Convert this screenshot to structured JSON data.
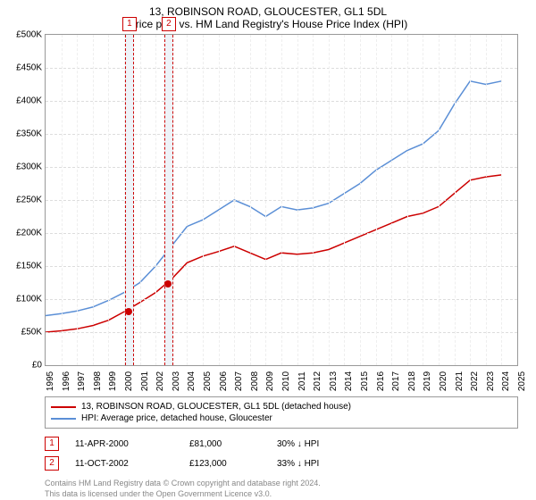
{
  "title": "13, ROBINSON ROAD, GLOUCESTER, GL1 5DL",
  "subtitle": "Price paid vs. HM Land Registry's House Price Index (HPI)",
  "chart": {
    "type": "line",
    "background_color": "#ffffff",
    "grid_color": "#dddddd",
    "axis_color": "#999999",
    "x_years": [
      1995,
      1996,
      1997,
      1998,
      1999,
      2000,
      2001,
      2002,
      2003,
      2004,
      2005,
      2006,
      2007,
      2008,
      2009,
      2010,
      2011,
      2012,
      2013,
      2014,
      2015,
      2016,
      2017,
      2018,
      2019,
      2020,
      2021,
      2022,
      2023,
      2024,
      2025
    ],
    "xlim": [
      1995,
      2025
    ],
    "ylim": [
      0,
      500000
    ],
    "ytick_step": 50000,
    "ytick_prefix": "£",
    "ytick_suffixK": true,
    "label_fontsize": 10,
    "line_width": 1.5,
    "series": [
      {
        "name": "13, ROBINSON ROAD, GLOUCESTER, GL1 5DL (detached house)",
        "color": "#cc0000",
        "points": [
          [
            1995,
            50000
          ],
          [
            1996,
            52000
          ],
          [
            1997,
            55000
          ],
          [
            1998,
            60000
          ],
          [
            1999,
            68000
          ],
          [
            2000,
            81000
          ],
          [
            2001,
            95000
          ],
          [
            2002,
            110000
          ],
          [
            2003,
            130000
          ],
          [
            2004,
            155000
          ],
          [
            2005,
            165000
          ],
          [
            2006,
            172000
          ],
          [
            2007,
            180000
          ],
          [
            2008,
            170000
          ],
          [
            2009,
            160000
          ],
          [
            2010,
            170000
          ],
          [
            2011,
            168000
          ],
          [
            2012,
            170000
          ],
          [
            2013,
            175000
          ],
          [
            2014,
            185000
          ],
          [
            2015,
            195000
          ],
          [
            2016,
            205000
          ],
          [
            2017,
            215000
          ],
          [
            2018,
            225000
          ],
          [
            2019,
            230000
          ],
          [
            2020,
            240000
          ],
          [
            2021,
            260000
          ],
          [
            2022,
            280000
          ],
          [
            2023,
            285000
          ],
          [
            2024,
            288000
          ]
        ]
      },
      {
        "name": "HPI: Average price, detached house, Gloucester",
        "color": "#5b8fd6",
        "points": [
          [
            1995,
            75000
          ],
          [
            1996,
            78000
          ],
          [
            1997,
            82000
          ],
          [
            1998,
            88000
          ],
          [
            1999,
            98000
          ],
          [
            2000,
            110000
          ],
          [
            2001,
            125000
          ],
          [
            2002,
            150000
          ],
          [
            2003,
            180000
          ],
          [
            2004,
            210000
          ],
          [
            2005,
            220000
          ],
          [
            2006,
            235000
          ],
          [
            2007,
            250000
          ],
          [
            2008,
            240000
          ],
          [
            2009,
            225000
          ],
          [
            2010,
            240000
          ],
          [
            2011,
            235000
          ],
          [
            2012,
            238000
          ],
          [
            2013,
            245000
          ],
          [
            2014,
            260000
          ],
          [
            2015,
            275000
          ],
          [
            2016,
            295000
          ],
          [
            2017,
            310000
          ],
          [
            2018,
            325000
          ],
          [
            2019,
            335000
          ],
          [
            2020,
            355000
          ],
          [
            2021,
            395000
          ],
          [
            2022,
            430000
          ],
          [
            2023,
            425000
          ],
          [
            2024,
            430000
          ]
        ]
      }
    ],
    "sale_markers": [
      {
        "num": "1",
        "year": 2000.28,
        "price": 81000,
        "color": "#cc0000"
      },
      {
        "num": "2",
        "year": 2002.78,
        "price": 123000,
        "color": "#cc0000"
      }
    ]
  },
  "legend": {
    "items": [
      {
        "color": "#cc0000",
        "label": "13, ROBINSON ROAD, GLOUCESTER, GL1 5DL (detached house)"
      },
      {
        "color": "#5b8fd6",
        "label": "HPI: Average price, detached house, Gloucester"
      }
    ]
  },
  "sales": [
    {
      "num": "1",
      "date": "11-APR-2000",
      "price": "£81,000",
      "hpi": "30% ↓ HPI"
    },
    {
      "num": "2",
      "date": "11-OCT-2002",
      "price": "£123,000",
      "hpi": "33% ↓ HPI"
    }
  ],
  "footer": {
    "line1": "Contains HM Land Registry data © Crown copyright and database right 2024.",
    "line2": "This data is licensed under the Open Government Licence v3.0."
  }
}
